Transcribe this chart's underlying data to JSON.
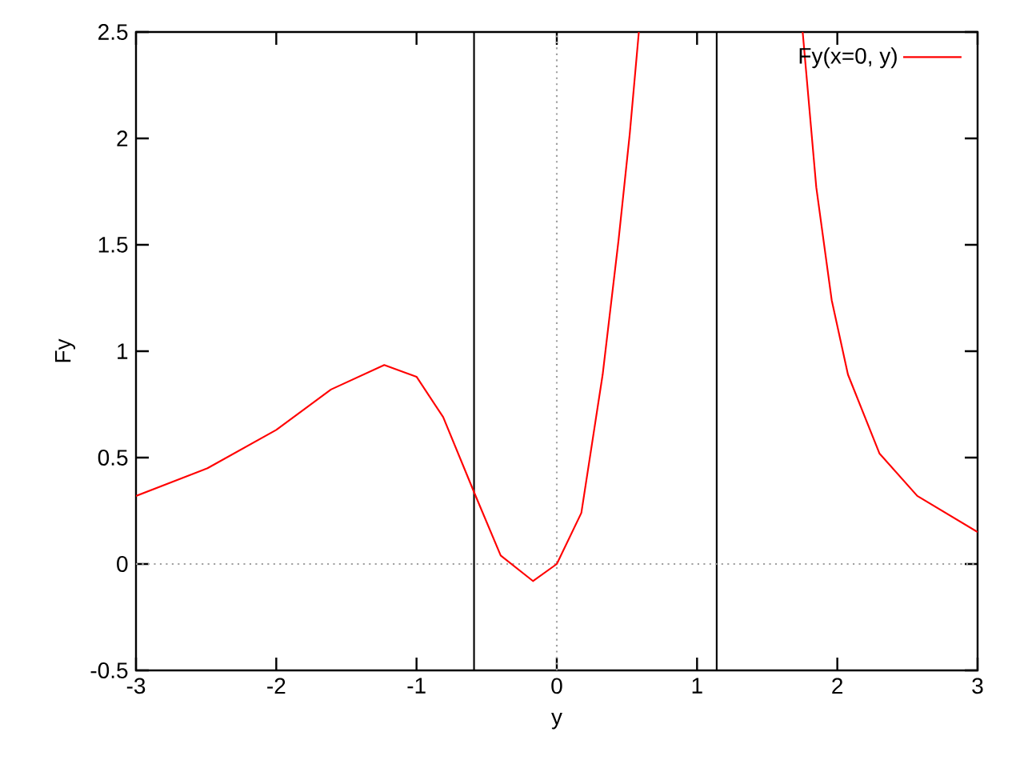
{
  "chart_data": {
    "type": "line",
    "xlabel": "y",
    "ylabel": "Fy",
    "xlim": [
      -3,
      3
    ],
    "ylim": [
      -0.5,
      2.5
    ],
    "xticks": [
      -3,
      -2,
      -1,
      0,
      1,
      2,
      3
    ],
    "yticks": [
      -0.5,
      0,
      0.5,
      1,
      1.5,
      2,
      2.5
    ],
    "legend": "top right",
    "grid": false,
    "series": [
      {
        "name": "Fy(x=0, y)",
        "color": "#ff0000",
        "x": [
          -3,
          -2.49,
          -2.0,
          -1.61,
          -1.23,
          -1.0,
          -0.81,
          -0.585,
          -0.4,
          -0.17,
          0,
          0.175,
          0.327,
          0.44,
          0.52,
          0.585,
          1.14,
          1.753,
          1.85,
          1.96,
          2.076,
          2.3,
          2.57,
          3
        ],
        "values": [
          0.32,
          0.45,
          0.63,
          0.82,
          0.935,
          0.88,
          0.69,
          0.33,
          0.04,
          -0.08,
          0,
          0.24,
          0.89,
          1.52,
          2.02,
          2.5,
          null,
          2.5,
          1.77,
          1.24,
          0.89,
          0.52,
          0.32,
          0.15
        ]
      }
    ],
    "ref_lines": [
      {
        "axis": "x",
        "value": -0.59,
        "color": "#000000",
        "line_style": "solid"
      },
      {
        "axis": "x",
        "value": 1.14,
        "color": "#000000",
        "line_style": "solid"
      },
      {
        "axis": "x",
        "value": 0,
        "color": "#a0a0a0",
        "line_style": "dotted"
      },
      {
        "axis": "y",
        "value": 0,
        "color": "#a0a0a0",
        "line_style": "dotted"
      }
    ]
  }
}
